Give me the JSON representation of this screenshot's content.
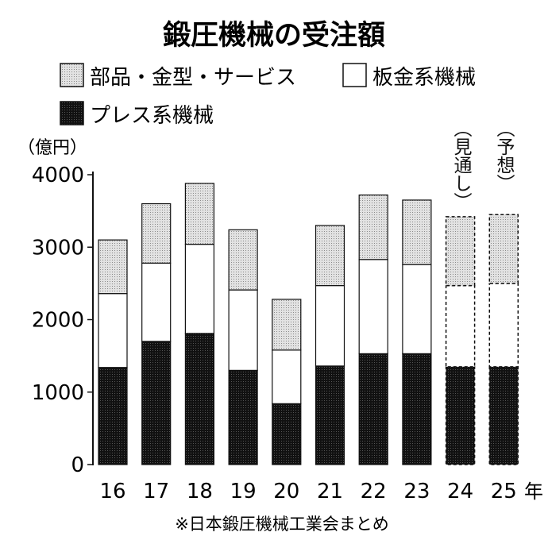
{
  "chart_data": {
    "type": "bar",
    "stacked": true,
    "title": "鍛圧機械の受注額",
    "ylabel": "（億円）",
    "xlabel_suffix": "年",
    "ylim": [
      0,
      4000
    ],
    "yticks": [
      "0",
      "1000",
      "2000",
      "3000",
      "4000"
    ],
    "categories": [
      "16",
      "17",
      "18",
      "19",
      "20",
      "21",
      "22",
      "23",
      "24",
      "25"
    ],
    "series": [
      {
        "name": "プレス系機械",
        "color": "#1a1a1a",
        "values": [
          1340,
          1700,
          1810,
          1300,
          840,
          1360,
          1530,
          1530,
          1350,
          1350
        ]
      },
      {
        "name": "板金系機械",
        "color": "#ffffff",
        "values": [
          1020,
          1080,
          1230,
          1110,
          740,
          1110,
          1300,
          1230,
          1120,
          1150
        ]
      },
      {
        "name": "部品・金型・サービス",
        "color": "#c8c8c8",
        "values": [
          740,
          820,
          840,
          830,
          700,
          830,
          890,
          890,
          950,
          950
        ]
      }
    ],
    "estimated_categories": [
      "24",
      "25"
    ],
    "annotations": {
      "24": "（見通し）",
      "25": "（予想）"
    },
    "legend_position": "top-left",
    "grid": false,
    "source_note": "※日本鍛圧機械工業会まとめ"
  }
}
